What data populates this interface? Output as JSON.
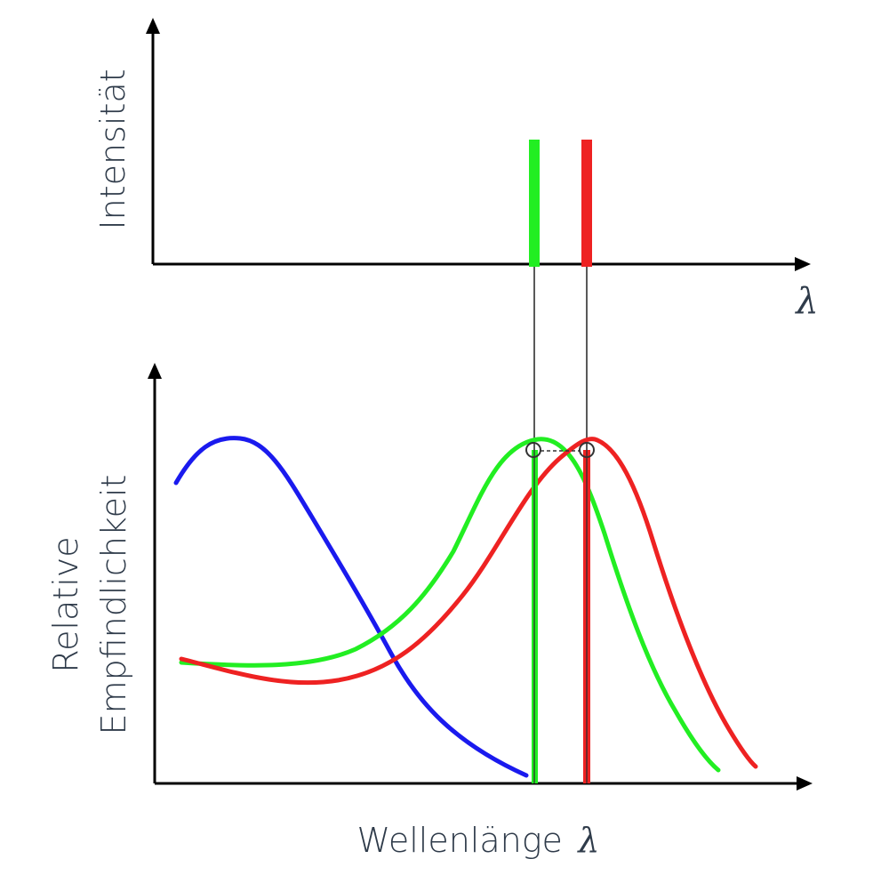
{
  "top_chart": {
    "ylabel": "Intensität",
    "xlabel": "λ",
    "lines": [
      {
        "name": "green-emission-line",
        "color": "#22ee22"
      },
      {
        "name": "red-emission-line",
        "color": "#ee2222"
      }
    ]
  },
  "bottom_chart": {
    "ylabel_line1": "Relative",
    "ylabel_line2": "Empfindlichkeit",
    "xlabel_text": "Wellenlänge",
    "xlabel_symbol": "λ",
    "curves": [
      {
        "name": "blue-sensitivity-curve",
        "color": "#1a1aee"
      },
      {
        "name": "green-sensitivity-curve",
        "color": "#22ee22"
      },
      {
        "name": "red-sensitivity-curve",
        "color": "#ee2222"
      }
    ]
  },
  "colors": {
    "axis": "#000000",
    "text": "#2f3b4a",
    "blue": "#1a1aee",
    "green": "#22ee22",
    "red": "#ee2222"
  }
}
